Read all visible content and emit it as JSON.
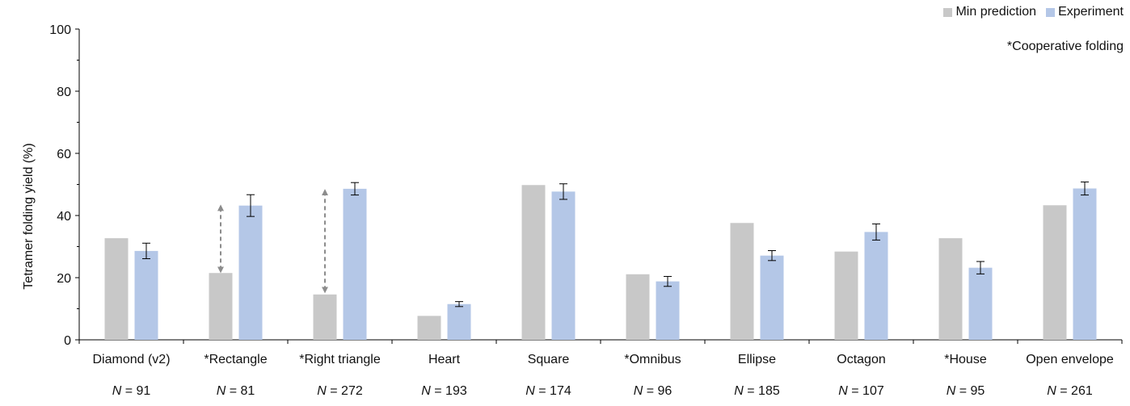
{
  "chart_data": {
    "type": "bar",
    "ylabel": "Tetramer folding yield (%)",
    "ylim": [
      0,
      100
    ],
    "yticks": [
      0,
      20,
      40,
      60,
      80,
      100
    ],
    "grid": false,
    "legend_position": "top-right",
    "annotation": "*Cooperative folding",
    "categories": [
      "Diamond (v2)",
      "*Rectangle",
      "*Right triangle",
      "Heart",
      "Square",
      "*Omnibus",
      "Ellipse",
      "Octagon",
      "*House",
      "Open envelope"
    ],
    "n_labels": [
      "91",
      "81",
      "272",
      "193",
      "174",
      "96",
      "185",
      "107",
      "95",
      "261"
    ],
    "n_prefix": "N",
    "n_eq": " = ",
    "series": [
      {
        "name": "Min prediction",
        "color": "#c8c8c8",
        "values": [
          32.7,
          21.5,
          14.6,
          7.7,
          49.8,
          21.1,
          37.6,
          28.4,
          32.7,
          43.3
        ]
      },
      {
        "name": "Experiment",
        "color": "#b4c7e7",
        "values": [
          28.6,
          43.2,
          48.6,
          11.5,
          47.7,
          18.8,
          27.1,
          34.7,
          23.2,
          48.7
        ],
        "errors": [
          2.5,
          3.5,
          2.0,
          0.8,
          2.5,
          1.6,
          1.6,
          2.6,
          2.0,
          2.1
        ]
      }
    ],
    "arrows": [
      {
        "category_index": 1,
        "from": 22.5,
        "to": 42.5
      },
      {
        "category_index": 2,
        "from": 16.0,
        "to": 47.5
      }
    ]
  }
}
